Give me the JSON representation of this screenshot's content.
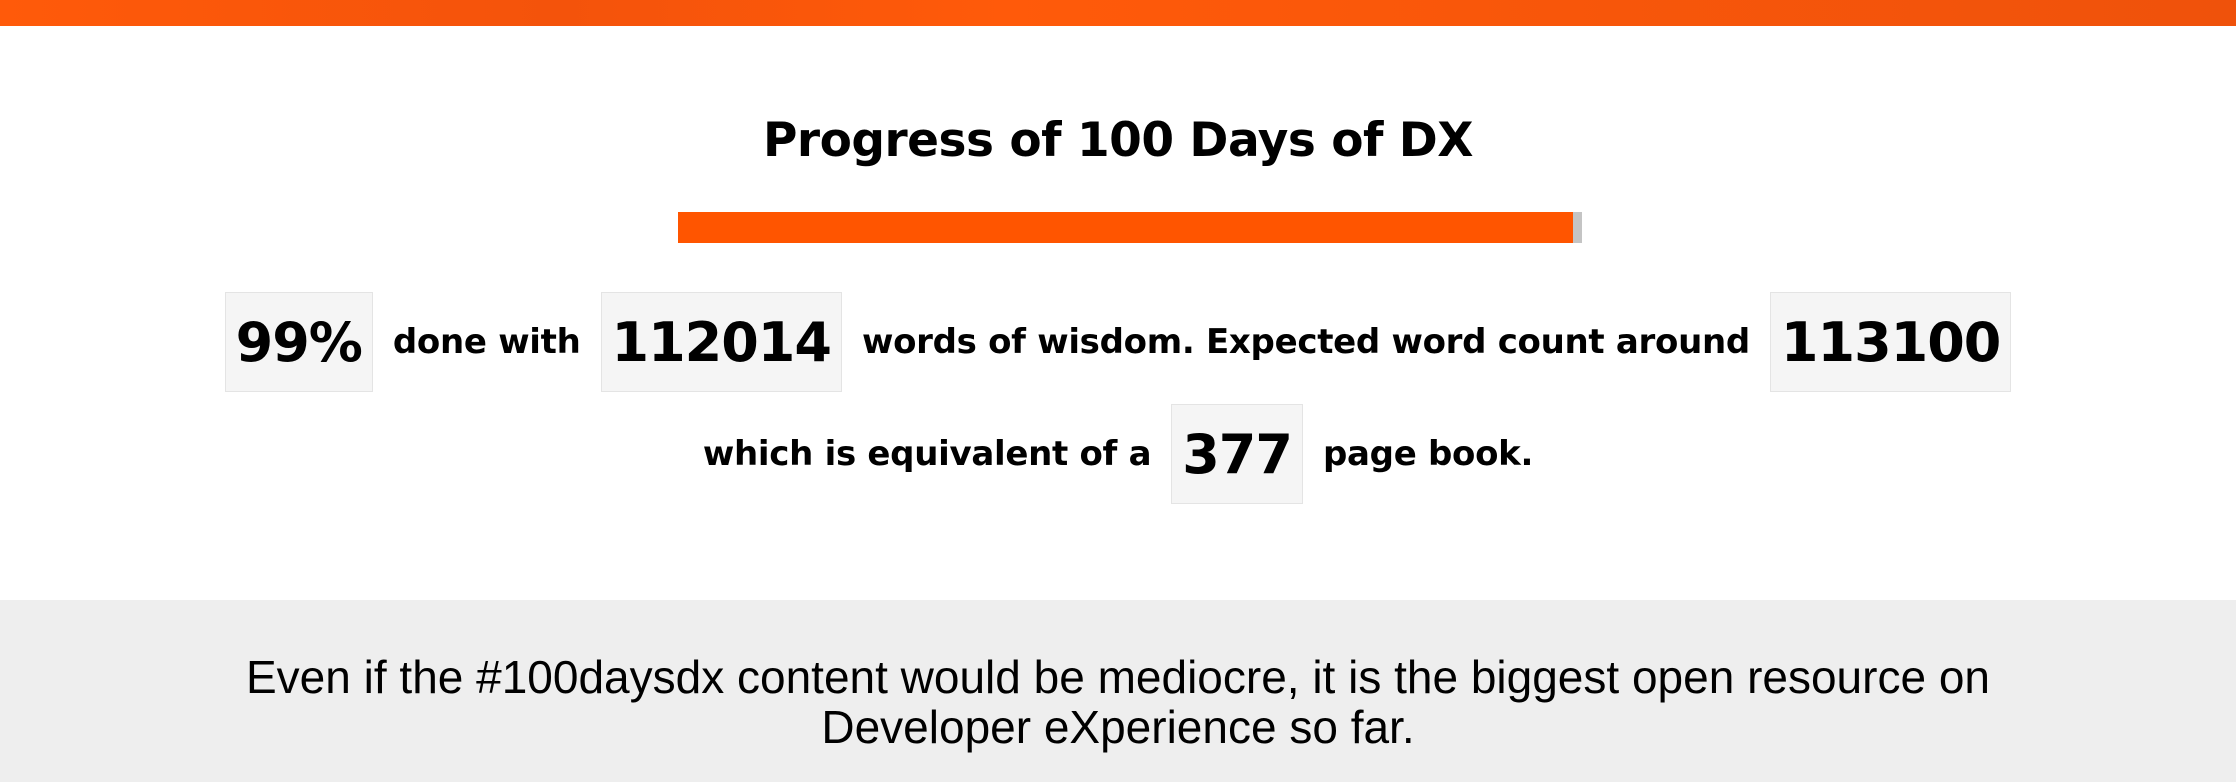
{
  "brand": {
    "accent_color": "#ff5500",
    "track_color": "#c4c4c4"
  },
  "progress": {
    "title": "Progress of 100 Days of DX",
    "fraction": 0.99,
    "percent_label": "99%",
    "text_done_with": "done with",
    "word_count": "112014",
    "text_words_expected": "words of wisdom. Expected word count around",
    "expected_word_count": "113100",
    "text_equivalent": "which is equivalent of a",
    "page_count": "377",
    "text_page_book": "page book."
  },
  "footer": {
    "quote": "Even if the #100daysdx content would be mediocre, it is the biggest open resource on Developer eXperience so far."
  }
}
